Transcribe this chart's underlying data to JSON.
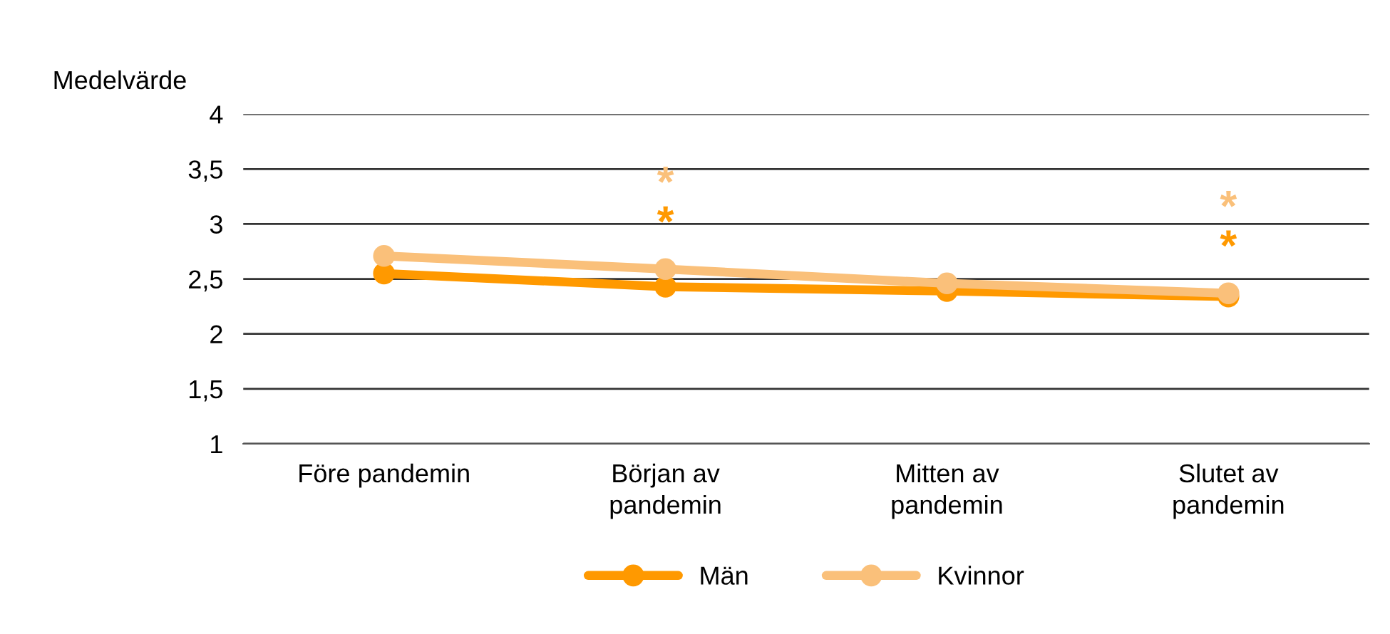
{
  "chart_data": {
    "type": "line",
    "ylabel": "Medelvärde",
    "categories": [
      "Före pandemin",
      "Början av\npandemin",
      "Mitten av\npandemin",
      "Slutet av\npandemin"
    ],
    "series": [
      {
        "name": "Män",
        "color": "#ff9900",
        "values": [
          2.55,
          2.43,
          2.39,
          2.34
        ],
        "value_labels": [
          null,
          "*",
          null,
          "*"
        ]
      },
      {
        "name": "Kvinnor",
        "color": "#fac07a",
        "values": [
          2.71,
          2.59,
          2.46,
          2.37
        ],
        "value_labels": [
          null,
          "*",
          null,
          "*"
        ]
      }
    ],
    "ylim": [
      1,
      4
    ],
    "yticks": [
      1,
      {
        "value": 1.5,
        "label": "1,5"
      },
      2,
      {
        "value": 2.5,
        "label": "2,5"
      },
      3,
      {
        "value": 3.5,
        "label": "3,5"
      },
      4
    ],
    "grid": "y",
    "legend": "bottom",
    "marker": "circle",
    "line_style": "solid"
  }
}
